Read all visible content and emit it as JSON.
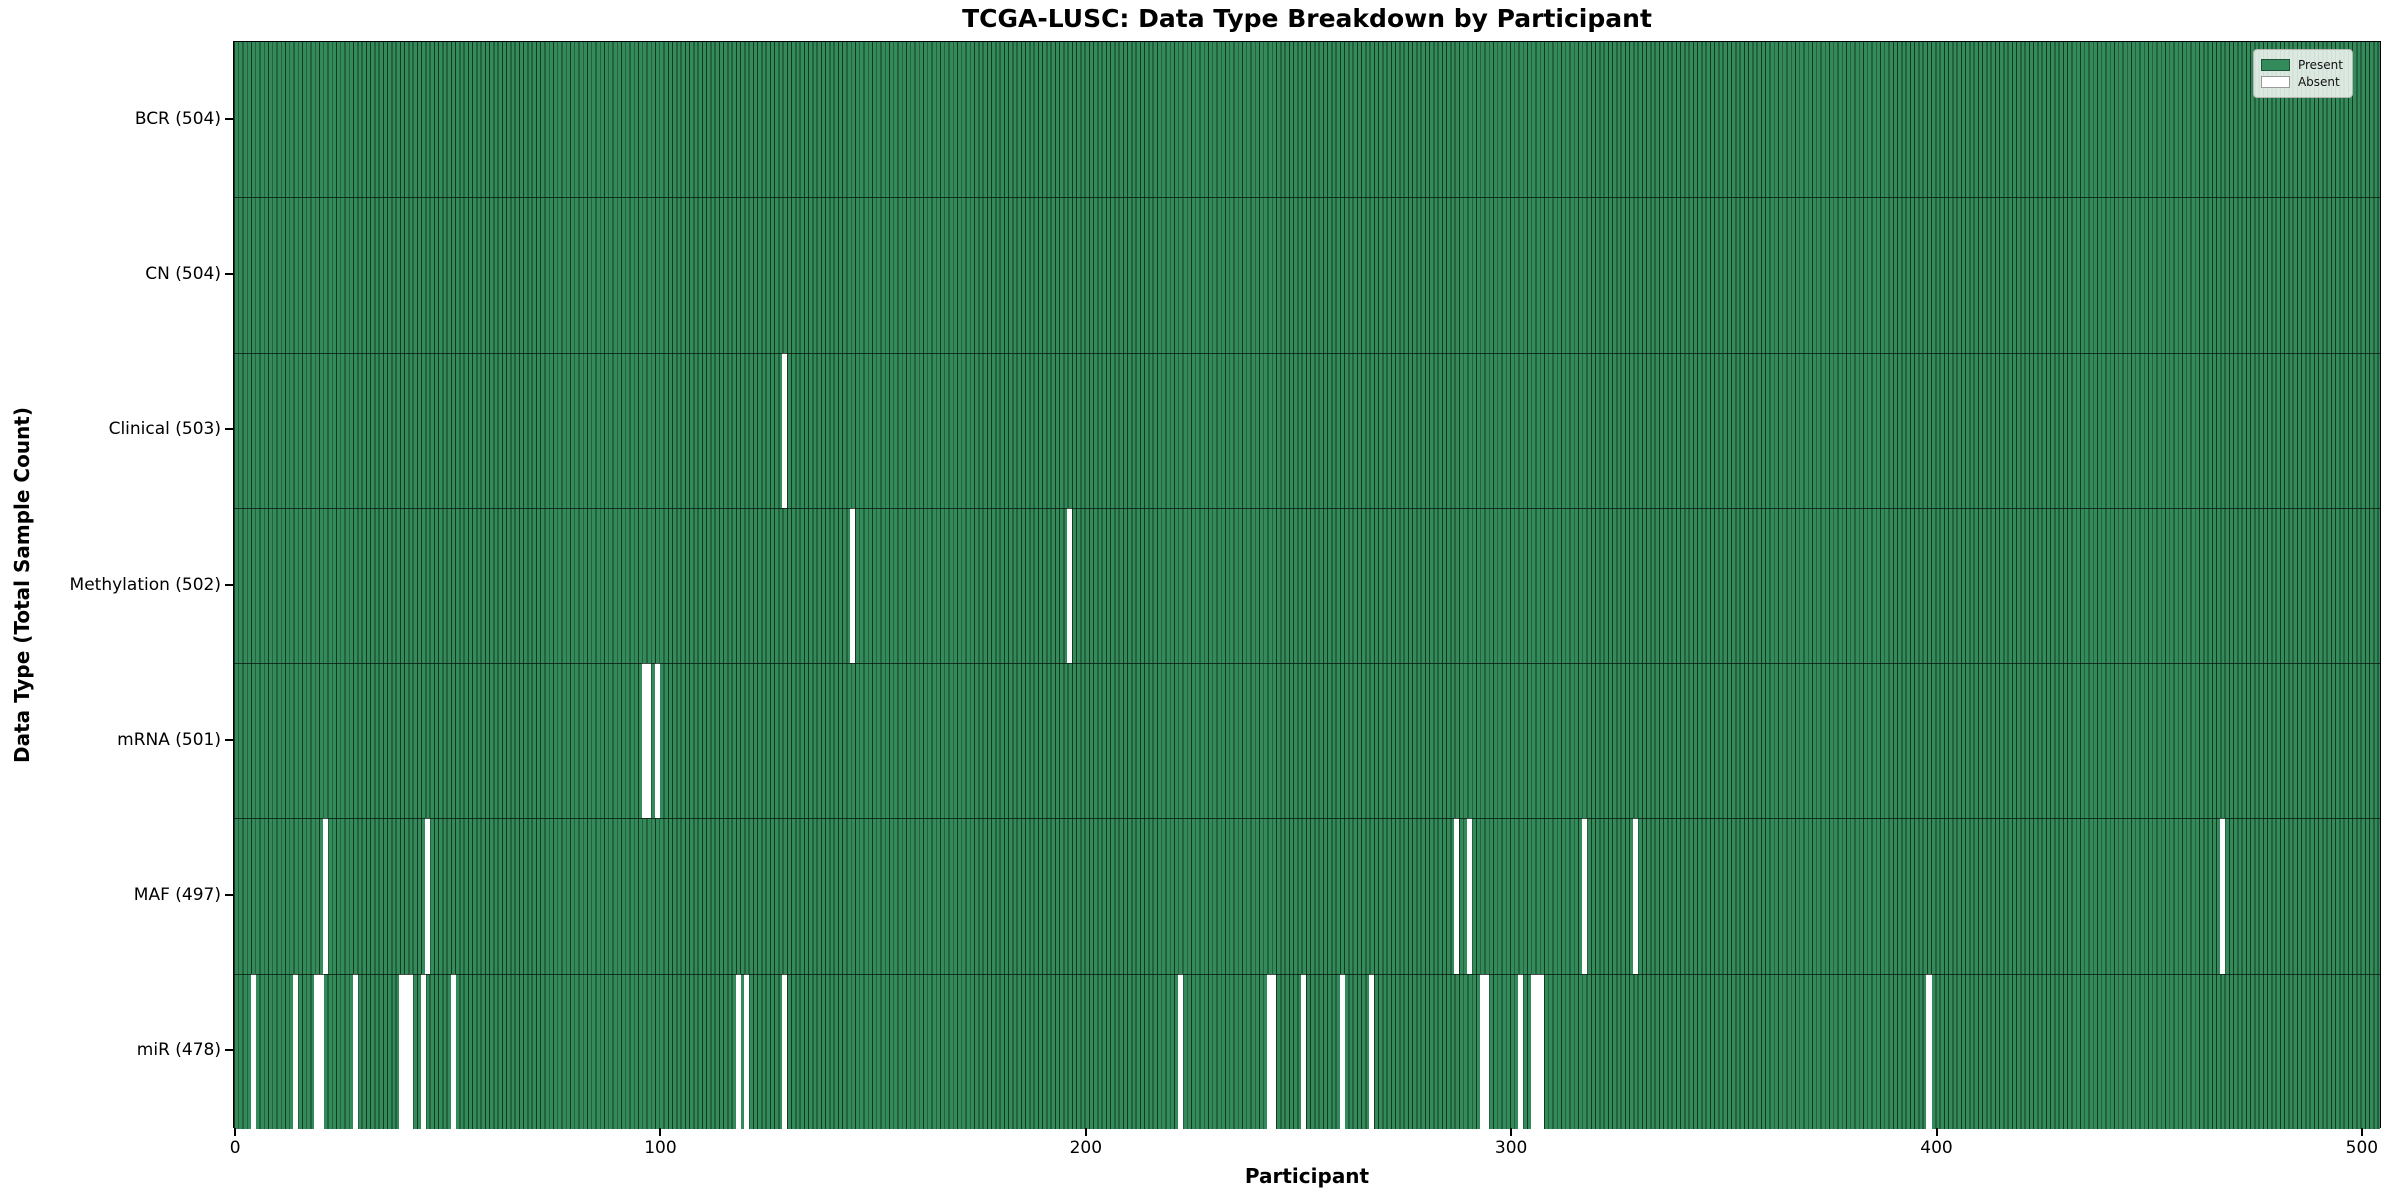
{
  "chart_data": {
    "type": "heatmap",
    "title": "TCGA-LUSC: Data Type Breakdown by Participant",
    "xlabel": "Participant",
    "ylabel": "Data Type (Total Sample Count)",
    "x_ticks": [
      0,
      100,
      200,
      300,
      400,
      500
    ],
    "x_range": [
      0,
      504
    ],
    "n_participants": 504,
    "grid": false,
    "legend_position": "upper right",
    "legend": [
      {
        "label": "Present",
        "color": "#338a5b"
      },
      {
        "label": "Absent",
        "color": "#ffffff"
      }
    ],
    "colors": {
      "present": "#338a5b",
      "absent": "#ffffff",
      "bar_edge": "#16381f",
      "row_separator": "rgba(5,20,10,0.75)"
    },
    "rows": [
      {
        "label": "BCR (504)",
        "name": "BCR",
        "total": 504,
        "absent": []
      },
      {
        "label": "CN (504)",
        "name": "CN",
        "total": 504,
        "absent": []
      },
      {
        "label": "Clinical (503)",
        "name": "Clinical",
        "total": 503,
        "absent": [
          129
        ]
      },
      {
        "label": "Methylation (502)",
        "name": "Methylation",
        "total": 502,
        "absent": [
          145,
          196
        ]
      },
      {
        "label": "mRNA (501)",
        "name": "mRNA",
        "total": 501,
        "absent": [
          96,
          97,
          99
        ]
      },
      {
        "label": "MAF (497)",
        "name": "MAF",
        "total": 497,
        "absent": [
          21,
          45,
          287,
          290,
          317,
          329,
          467
        ]
      },
      {
        "label": "miR (478)",
        "name": "miR",
        "total": 478,
        "absent": [
          4,
          14,
          19,
          20,
          28,
          39,
          40,
          41,
          44,
          51,
          118,
          120,
          129,
          222,
          243,
          244,
          251,
          260,
          267,
          293,
          294,
          302,
          305,
          306,
          307,
          398
        ]
      }
    ]
  }
}
